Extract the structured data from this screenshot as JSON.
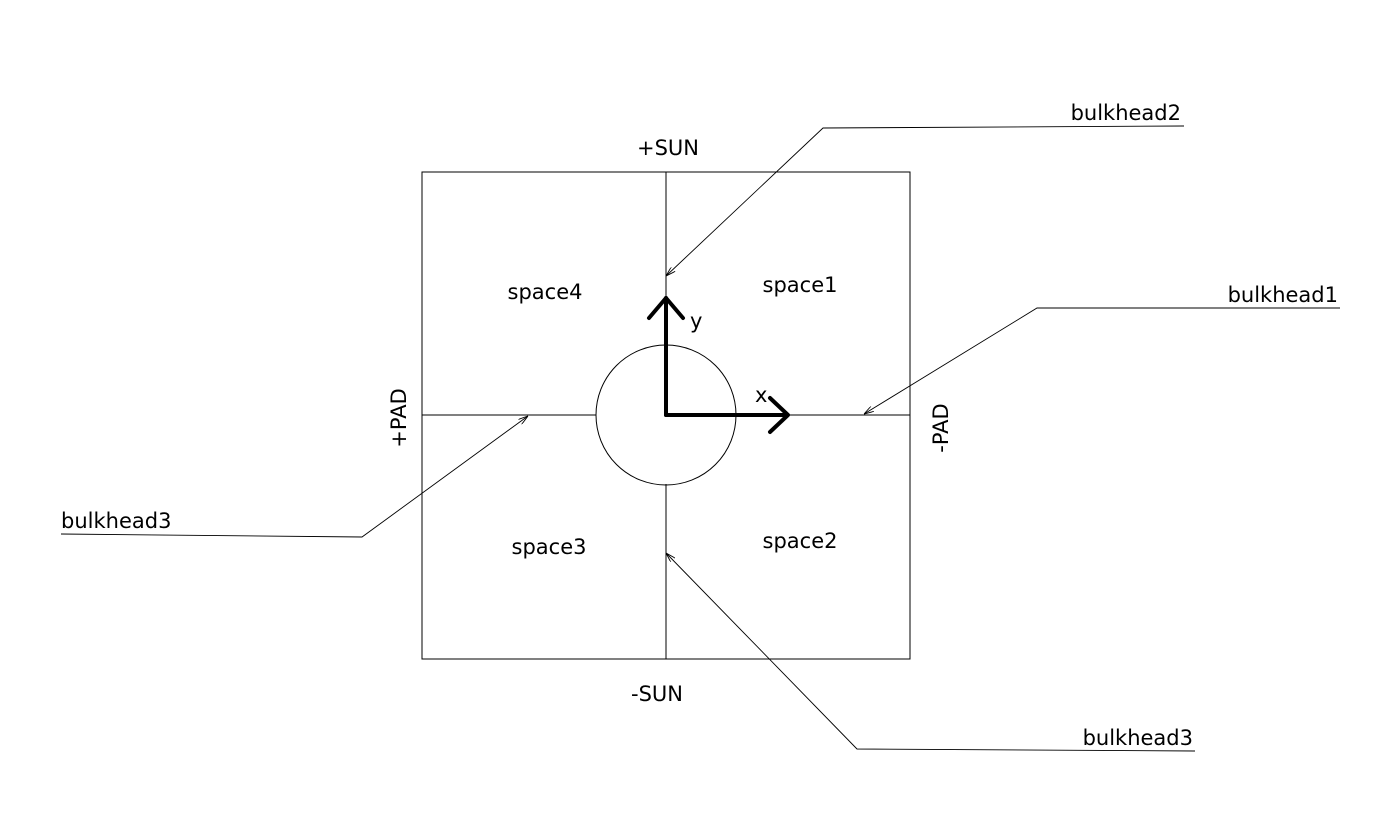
{
  "sides": {
    "top": "+SUN",
    "bottom": "-SUN",
    "left": "+PAD",
    "right": "-PAD"
  },
  "spaces": {
    "upper_right": "space1",
    "lower_right": "space2",
    "lower_left": "space3",
    "upper_left": "space4"
  },
  "axes": {
    "x": "x",
    "y": "y"
  },
  "callouts": {
    "top_right": "bulkhead2",
    "right": "bulkhead1",
    "left": "bulkhead3",
    "bottom_right": "bulkhead3"
  }
}
